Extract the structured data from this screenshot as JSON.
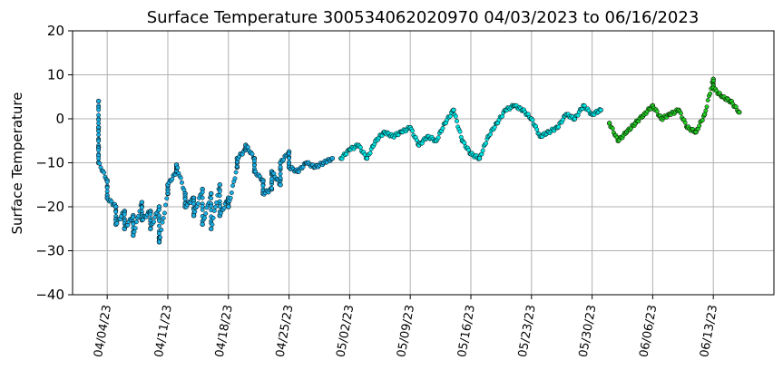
{
  "chart_data": {
    "type": "scatter",
    "title": "Surface Temperature 300534062020970  04/03/2023 to 06/16/2023",
    "xlabel": "",
    "ylabel": "Surface Temperature",
    "ylim": [
      -40,
      20
    ],
    "xlim": [
      "2023-03-31",
      "2023-06-20"
    ],
    "yticks": [
      -40,
      -30,
      -20,
      -10,
      0,
      10,
      20
    ],
    "xticks": [
      "04/04/23",
      "04/11/23",
      "04/18/23",
      "04/25/23",
      "05/02/23",
      "05/09/23",
      "05/16/23",
      "05/23/23",
      "05/30/23",
      "06/06/23",
      "06/13/23"
    ],
    "grid": true,
    "marker_edge_color": "#000000",
    "series": [
      {
        "color": "#1ab0e6",
        "points": [
          [
            "2023-04-03",
            4
          ],
          [
            "2023-04-03",
            -2
          ],
          [
            "2023-04-03",
            -6.5
          ],
          [
            "2023-04-03",
            -10
          ],
          [
            "2023-04-04",
            -14
          ],
          [
            "2023-04-04",
            -18
          ],
          [
            "2023-04-05",
            -20
          ],
          [
            "2023-04-05",
            -24
          ],
          [
            "2023-04-06",
            -21
          ],
          [
            "2023-04-06",
            -25
          ],
          [
            "2023-04-07",
            -22
          ],
          [
            "2023-04-07",
            -26.5
          ],
          [
            "2023-04-08",
            -19
          ],
          [
            "2023-04-08",
            -23
          ],
          [
            "2023-04-09",
            -21
          ],
          [
            "2023-04-09",
            -25
          ],
          [
            "2023-04-10",
            -20
          ],
          [
            "2023-04-10",
            -27
          ],
          [
            "2023-04-10",
            -28
          ],
          [
            "2023-04-11",
            -17
          ],
          [
            "2023-04-11",
            -15
          ],
          [
            "2023-04-12",
            -12
          ],
          [
            "2023-04-12",
            -10.5
          ],
          [
            "2023-04-13",
            -17
          ],
          [
            "2023-04-13",
            -20
          ],
          [
            "2023-04-14",
            -18
          ],
          [
            "2023-04-14",
            -22
          ],
          [
            "2023-04-15",
            -16
          ],
          [
            "2023-04-15",
            -24
          ],
          [
            "2023-04-16",
            -17
          ],
          [
            "2023-04-16",
            -25
          ],
          [
            "2023-04-17",
            -15
          ],
          [
            "2023-04-17",
            -22
          ],
          [
            "2023-04-18",
            -18
          ],
          [
            "2023-04-18",
            -20
          ],
          [
            "2023-04-19",
            -11
          ],
          [
            "2023-04-19",
            -9
          ],
          [
            "2023-04-20",
            -7
          ],
          [
            "2023-04-20",
            -6
          ],
          [
            "2023-04-21",
            -9
          ],
          [
            "2023-04-21",
            -12
          ],
          [
            "2023-04-22",
            -14
          ],
          [
            "2023-04-22",
            -17
          ],
          [
            "2023-04-23",
            -16
          ],
          [
            "2023-04-23",
            -12
          ],
          [
            "2023-04-24",
            -15
          ],
          [
            "2023-04-24",
            -10
          ],
          [
            "2023-04-25",
            -7.5
          ],
          [
            "2023-04-25",
            -11
          ],
          [
            "2023-04-26",
            -12
          ],
          [
            "2023-04-27",
            -10
          ],
          [
            "2023-04-28",
            -11
          ],
          [
            "2023-04-29",
            -10
          ],
          [
            "2023-04-30",
            -9
          ]
        ]
      },
      {
        "color": "#00e5e5",
        "points": [
          [
            "2023-05-01",
            -9
          ],
          [
            "2023-05-02",
            -7
          ],
          [
            "2023-05-03",
            -6
          ],
          [
            "2023-05-04",
            -9
          ],
          [
            "2023-05-05",
            -5
          ],
          [
            "2023-05-06",
            -3
          ],
          [
            "2023-05-07",
            -4
          ],
          [
            "2023-05-08",
            -3
          ],
          [
            "2023-05-09",
            -2
          ],
          [
            "2023-05-10",
            -6
          ],
          [
            "2023-05-11",
            -4
          ],
          [
            "2023-05-12",
            -5
          ],
          [
            "2023-05-13",
            -1
          ],
          [
            "2023-05-14",
            2
          ],
          [
            "2023-05-15",
            -5
          ],
          [
            "2023-05-16",
            -8
          ],
          [
            "2023-05-17",
            -9
          ],
          [
            "2023-05-18",
            -4
          ],
          [
            "2023-05-19",
            -1
          ],
          [
            "2023-05-20",
            2
          ],
          [
            "2023-05-21",
            3
          ],
          [
            "2023-05-22",
            2
          ],
          [
            "2023-05-23",
            0
          ],
          [
            "2023-05-24",
            -4
          ],
          [
            "2023-05-25",
            -3
          ],
          [
            "2023-05-26",
            -2
          ],
          [
            "2023-05-27",
            1
          ],
          [
            "2023-05-28",
            0
          ],
          [
            "2023-05-29",
            3
          ],
          [
            "2023-05-30",
            1
          ],
          [
            "2023-05-31",
            2
          ]
        ]
      },
      {
        "color": "#22cc22",
        "points": [
          [
            "2023-06-01",
            -1
          ],
          [
            "2023-06-02",
            -5
          ],
          [
            "2023-06-03",
            -3
          ],
          [
            "2023-06-04",
            -1
          ],
          [
            "2023-06-05",
            1
          ],
          [
            "2023-06-06",
            3
          ],
          [
            "2023-06-07",
            0
          ],
          [
            "2023-06-08",
            1
          ],
          [
            "2023-06-09",
            2
          ],
          [
            "2023-06-10",
            -2
          ],
          [
            "2023-06-11",
            -3
          ],
          [
            "2023-06-12",
            1
          ],
          [
            "2023-06-13",
            9
          ],
          [
            "2023-06-13",
            7
          ],
          [
            "2023-06-14",
            5
          ],
          [
            "2023-06-15",
            4
          ],
          [
            "2023-06-16",
            1.5
          ]
        ]
      }
    ]
  }
}
